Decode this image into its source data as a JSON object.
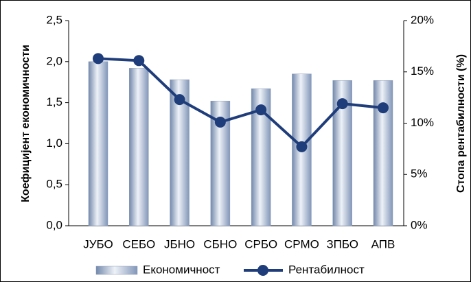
{
  "chart_data": {
    "type": "bar-line",
    "categories": [
      "ЈУБО",
      "СЕБО",
      "ЈБНО",
      "СБНО",
      "СРБО",
      "СРМО",
      "ЗПБО",
      "АПВ"
    ],
    "y_label": "Коефицијент економичности",
    "y2_label": "Стопа рентабилности (%)",
    "ylim": [
      0,
      2.5
    ],
    "yticks": [
      {
        "value": 0,
        "label": "0,0"
      },
      {
        "value": 0.5,
        "label": "0,5"
      },
      {
        "value": 1,
        "label": "1,0"
      },
      {
        "value": 1.5,
        "label": "1,5"
      },
      {
        "value": 2,
        "label": "2,0"
      },
      {
        "value": 2.5,
        "label": "2,5"
      }
    ],
    "y2lim": [
      0,
      20
    ],
    "y2ticks": [
      {
        "value": 0,
        "label": "0%"
      },
      {
        "value": 5,
        "label": "5%"
      },
      {
        "value": 10,
        "label": "10%"
      },
      {
        "value": 15,
        "label": "15%"
      },
      {
        "value": 20,
        "label": "20%"
      }
    ],
    "series": [
      {
        "name": "Економичност",
        "type": "bar",
        "color": "#9fb2cf",
        "values": [
          2.0,
          1.92,
          1.78,
          1.52,
          1.67,
          1.85,
          1.77,
          1.77
        ]
      },
      {
        "name": "Рентабилност",
        "type": "line",
        "axis": "y2",
        "color": "#1f3d7a",
        "values": [
          16.3,
          16.1,
          12.3,
          10.1,
          11.3,
          7.7,
          11.9,
          11.5
        ]
      }
    ]
  }
}
